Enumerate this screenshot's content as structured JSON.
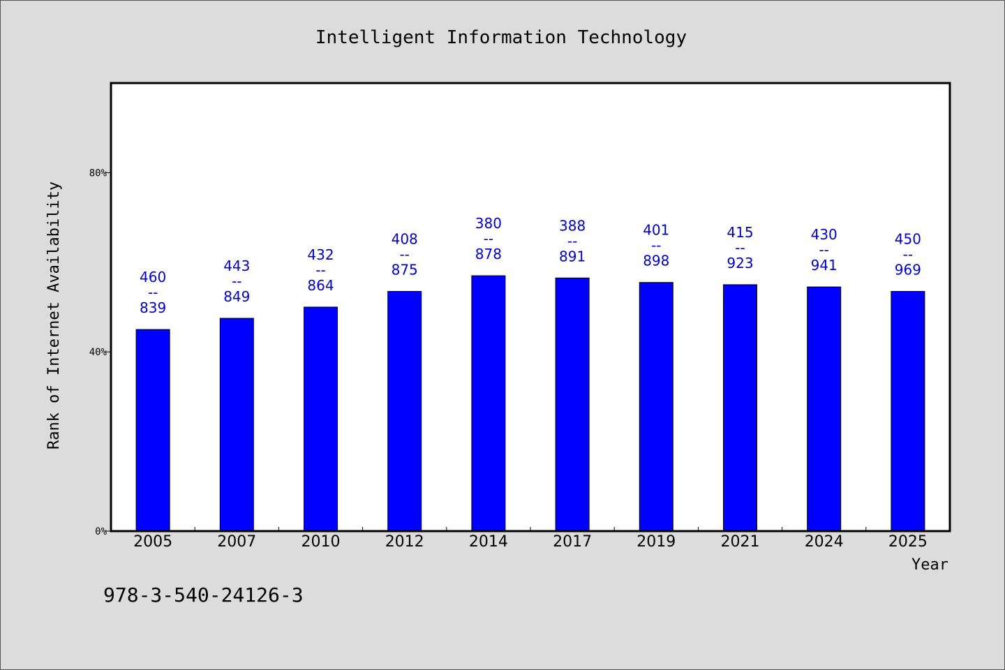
{
  "chart_data": {
    "type": "bar",
    "title": "Intelligent Information Technology",
    "xlabel": "Year",
    "ylabel": "Rank of Internet Availability",
    "ylim": [
      0,
      100
    ],
    "yticks": [
      0,
      40,
      80
    ],
    "ytick_labels": [
      "0%",
      "40%",
      "80%"
    ],
    "categories": [
      "2005",
      "2007",
      "2010",
      "2012",
      "2014",
      "2017",
      "2019",
      "2021",
      "2024",
      "2025"
    ],
    "values": [
      45,
      47.5,
      50,
      53.5,
      57,
      56.5,
      55.5,
      55,
      54.5,
      53.5
    ],
    "data_labels": [
      {
        "top": "460",
        "mid": "--",
        "bottom": "839"
      },
      {
        "top": "443",
        "mid": "--",
        "bottom": "849"
      },
      {
        "top": "432",
        "mid": "--",
        "bottom": "864"
      },
      {
        "top": "408",
        "mid": "--",
        "bottom": "875"
      },
      {
        "top": "380",
        "mid": "--",
        "bottom": "878"
      },
      {
        "top": "388",
        "mid": "--",
        "bottom": "891"
      },
      {
        "top": "401",
        "mid": "--",
        "bottom": "898"
      },
      {
        "top": "415",
        "mid": "--",
        "bottom": "923"
      },
      {
        "top": "430",
        "mid": "--",
        "bottom": "941"
      },
      {
        "top": "450",
        "mid": "--",
        "bottom": "969"
      }
    ],
    "bar_color": "#0000ff",
    "label_color": "#0000cc",
    "grid": false,
    "legend": "none"
  },
  "footer_text": "978-3-540-24126-3"
}
